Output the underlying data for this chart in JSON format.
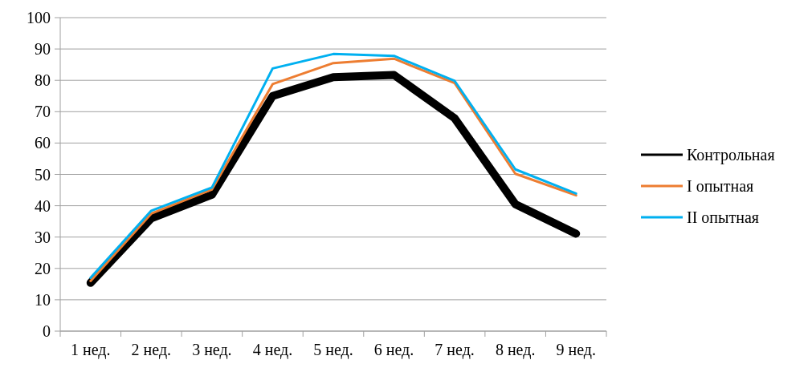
{
  "chart_data": {
    "type": "line",
    "categories": [
      "1 нед.",
      "2 нед.",
      "3 нед.",
      "4 нед.",
      "5 нед.",
      "6 нед.",
      "7 нед.",
      "8 нед.",
      "9 нед."
    ],
    "series": [
      {
        "name": "Контрольная",
        "color": "#000000",
        "values": [
          15.4,
          36,
          43.5,
          75,
          81,
          81.7,
          67.9,
          40.5,
          31.1
        ]
      },
      {
        "name": "I опытная",
        "color": "#ed7d31",
        "values": [
          16,
          37.5,
          45.2,
          78.8,
          85.5,
          86.9,
          79.1,
          50.2,
          43.3
        ]
      },
      {
        "name": "II опытная",
        "color": "#00b0f0",
        "values": [
          17,
          38.4,
          45.8,
          83.8,
          88.4,
          87.8,
          79.8,
          51.6,
          43.9
        ]
      }
    ],
    "ylim": [
      0,
      100
    ],
    "yticks": [
      0,
      10,
      20,
      30,
      40,
      50,
      60,
      70,
      80,
      90,
      100
    ],
    "grid": "y",
    "legend": "right",
    "marker": "none",
    "line_style": "solid"
  }
}
